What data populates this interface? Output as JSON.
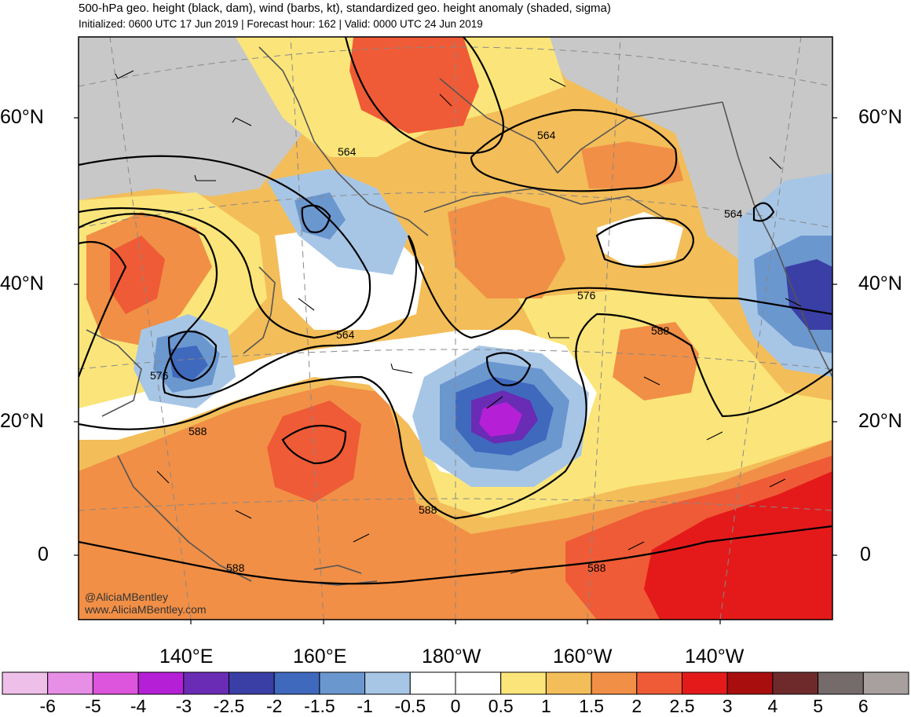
{
  "header": {
    "title": "500-hPa geo. height (black, dam), wind (barbs, kt), standardized geo. height anomaly (shaded, sigma)",
    "subtitle": "Initialized: 0600 UTC 17 Jun 2019 | Forecast hour: 162 | Valid: 0000 UTC 24 Jun 2019"
  },
  "axes": {
    "lat_labels": [
      "60°N",
      "40°N",
      "20°N",
      "0"
    ],
    "lon_labels": [
      "140°E",
      "160°E",
      "180°W",
      "160°W",
      "140°W"
    ]
  },
  "contour_labels": [
    "564",
    "564",
    "564",
    "564",
    "576",
    "576",
    "588",
    "588",
    "588",
    "588",
    "588"
  ],
  "colorbar": {
    "labels": [
      "-6",
      "-5",
      "-4",
      "-3",
      "-2.5",
      "-2",
      "-1.5",
      "-1",
      "-0.5",
      "0",
      "0.5",
      "1",
      "1.5",
      "2",
      "2.5",
      "3",
      "4",
      "5",
      "6"
    ],
    "colors": [
      "#eebfe8",
      "#e78fe6",
      "#dd55dd",
      "#b520d6",
      "#6a2bb5",
      "#3a3fa5",
      "#3f69bd",
      "#6b97cf",
      "#a7c6e6",
      "#ffffff",
      "#ffffff",
      "#fbe57a",
      "#f3bd59",
      "#f18f46",
      "#ef5b36",
      "#e41a1a",
      "#a80e0e",
      "#6e2a2a",
      "#766b6b",
      "#a89f9f"
    ]
  },
  "credits": {
    "handle": "@AliciaMBentley",
    "website": "www.AliciaMBentley.com"
  }
}
